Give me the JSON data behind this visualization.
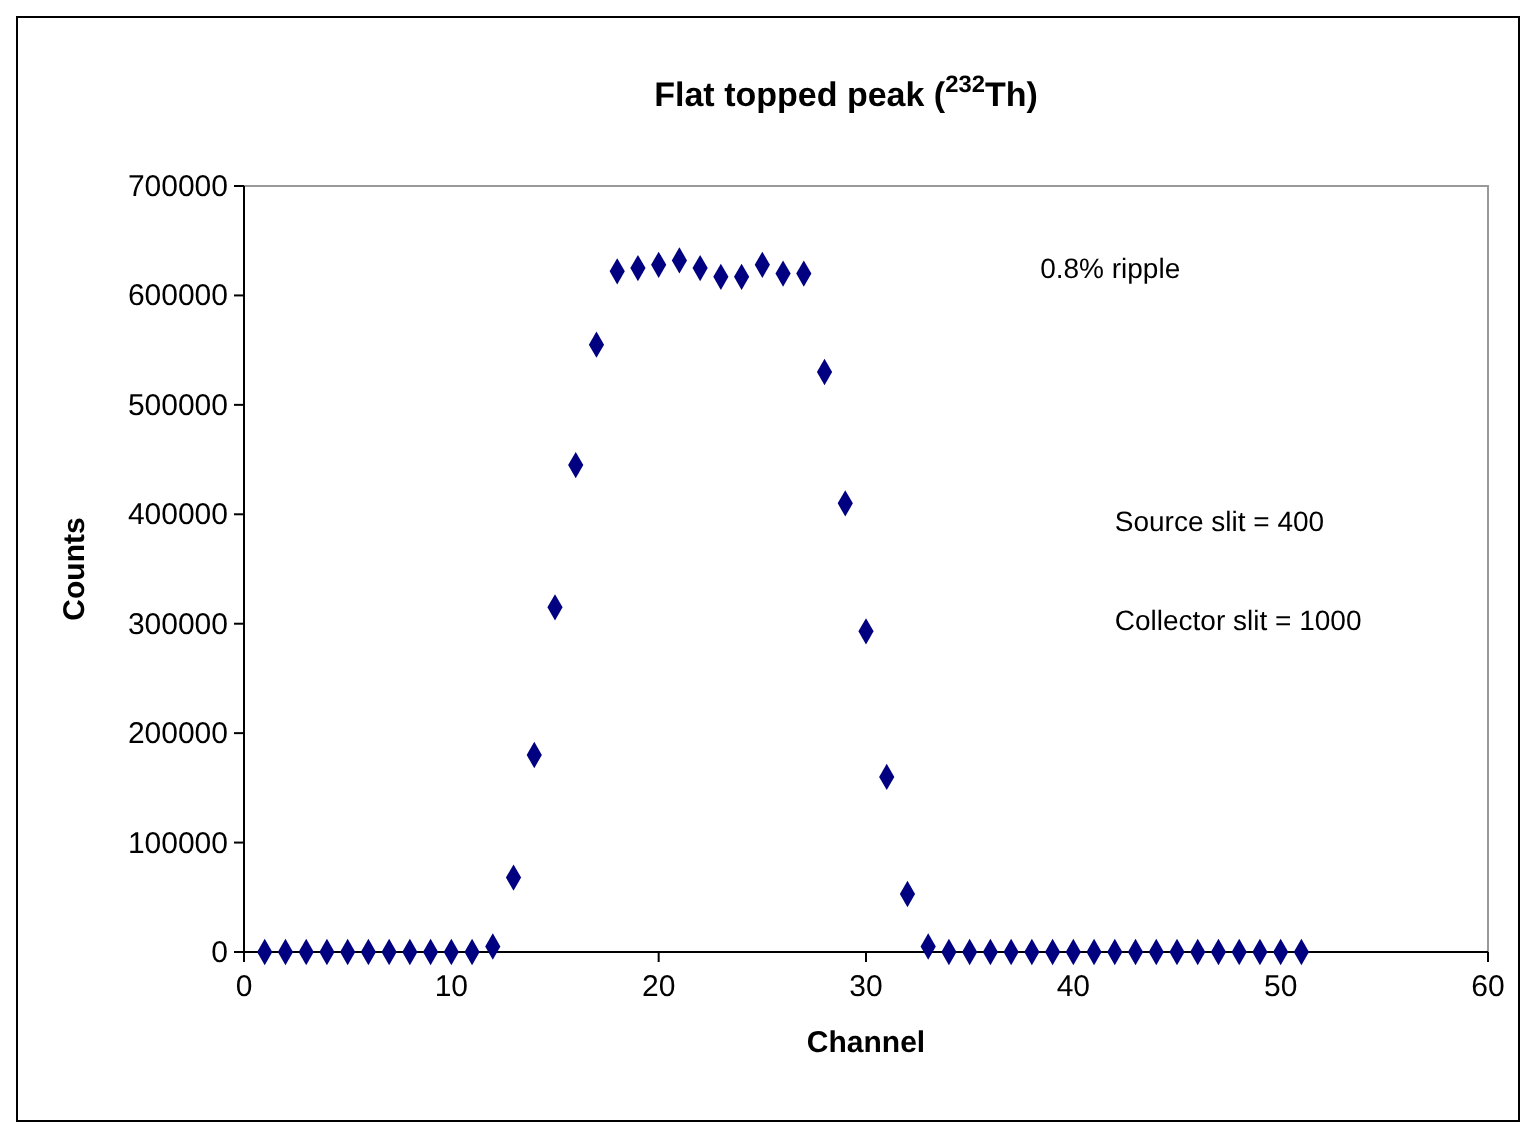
{
  "chart_data": {
    "type": "scatter",
    "title": "Flat topped peak ($^{232}$Th)",
    "xlabel": "Channel",
    "ylabel": "Counts",
    "x": [
      1,
      2,
      3,
      4,
      5,
      6,
      7,
      8,
      9,
      10,
      11,
      12,
      13,
      14,
      15,
      16,
      17,
      18,
      19,
      20,
      21,
      22,
      23,
      24,
      25,
      26,
      27,
      28,
      29,
      30,
      31,
      32,
      33,
      34,
      35,
      36,
      37,
      38,
      39,
      40,
      41,
      42,
      43,
      44,
      45,
      46,
      47,
      48,
      49,
      50,
      51
    ],
    "series": [
      {
        "color": "#000080",
        "values": [
          0,
          0,
          0,
          0,
          0,
          0,
          0,
          0,
          0,
          0,
          0,
          5000,
          68000,
          180000,
          315000,
          445000,
          555000,
          622000,
          625000,
          628000,
          632000,
          625000,
          617000,
          617000,
          628000,
          620000,
          620000,
          530000,
          410000,
          293000,
          160000,
          53000,
          5000,
          0,
          0,
          0,
          0,
          0,
          0,
          0,
          0,
          0,
          0,
          0,
          0,
          0,
          0,
          0,
          0,
          0,
          0
        ]
      }
    ],
    "xlim": [
      0,
      60
    ],
    "xticks": [
      0,
      10,
      20,
      30,
      40,
      50,
      60
    ],
    "ylim": [
      0,
      700000
    ],
    "yticks": [
      0,
      100000,
      200000,
      300000,
      400000,
      500000,
      600000,
      700000
    ],
    "marker": "diamond",
    "grid": false,
    "annotations": [
      "0.8% ripple",
      "Source slit = 400",
      "Collector slit = 1000"
    ]
  }
}
